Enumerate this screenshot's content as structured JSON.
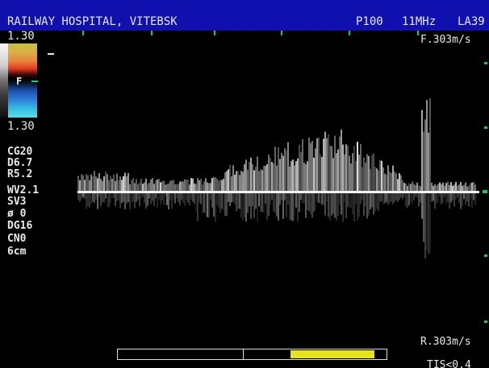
{
  "header": {
    "institution": "RAILWAY HOSPITAL, VITEBSK",
    "probe": "P100",
    "frequency": "11MHz",
    "preset": "LA39",
    "header_color": "#1010ae"
  },
  "colorbar": {
    "top_value": "1.30",
    "bottom_value": "1.30",
    "center_label": "F"
  },
  "scale": {
    "forward": "F.303m/s",
    "reverse": "R.303m/s"
  },
  "parameters": [
    "CG20",
    "D6.7",
    "R5.2",
    "WV2.1",
    "SV3",
    "ø 0",
    "DG16",
    "CN0",
    "6cm"
  ],
  "footer": {
    "tis_label": "TIS<0.4",
    "progress_fraction": 0.64,
    "highlight_color": "#e7e41f"
  }
}
